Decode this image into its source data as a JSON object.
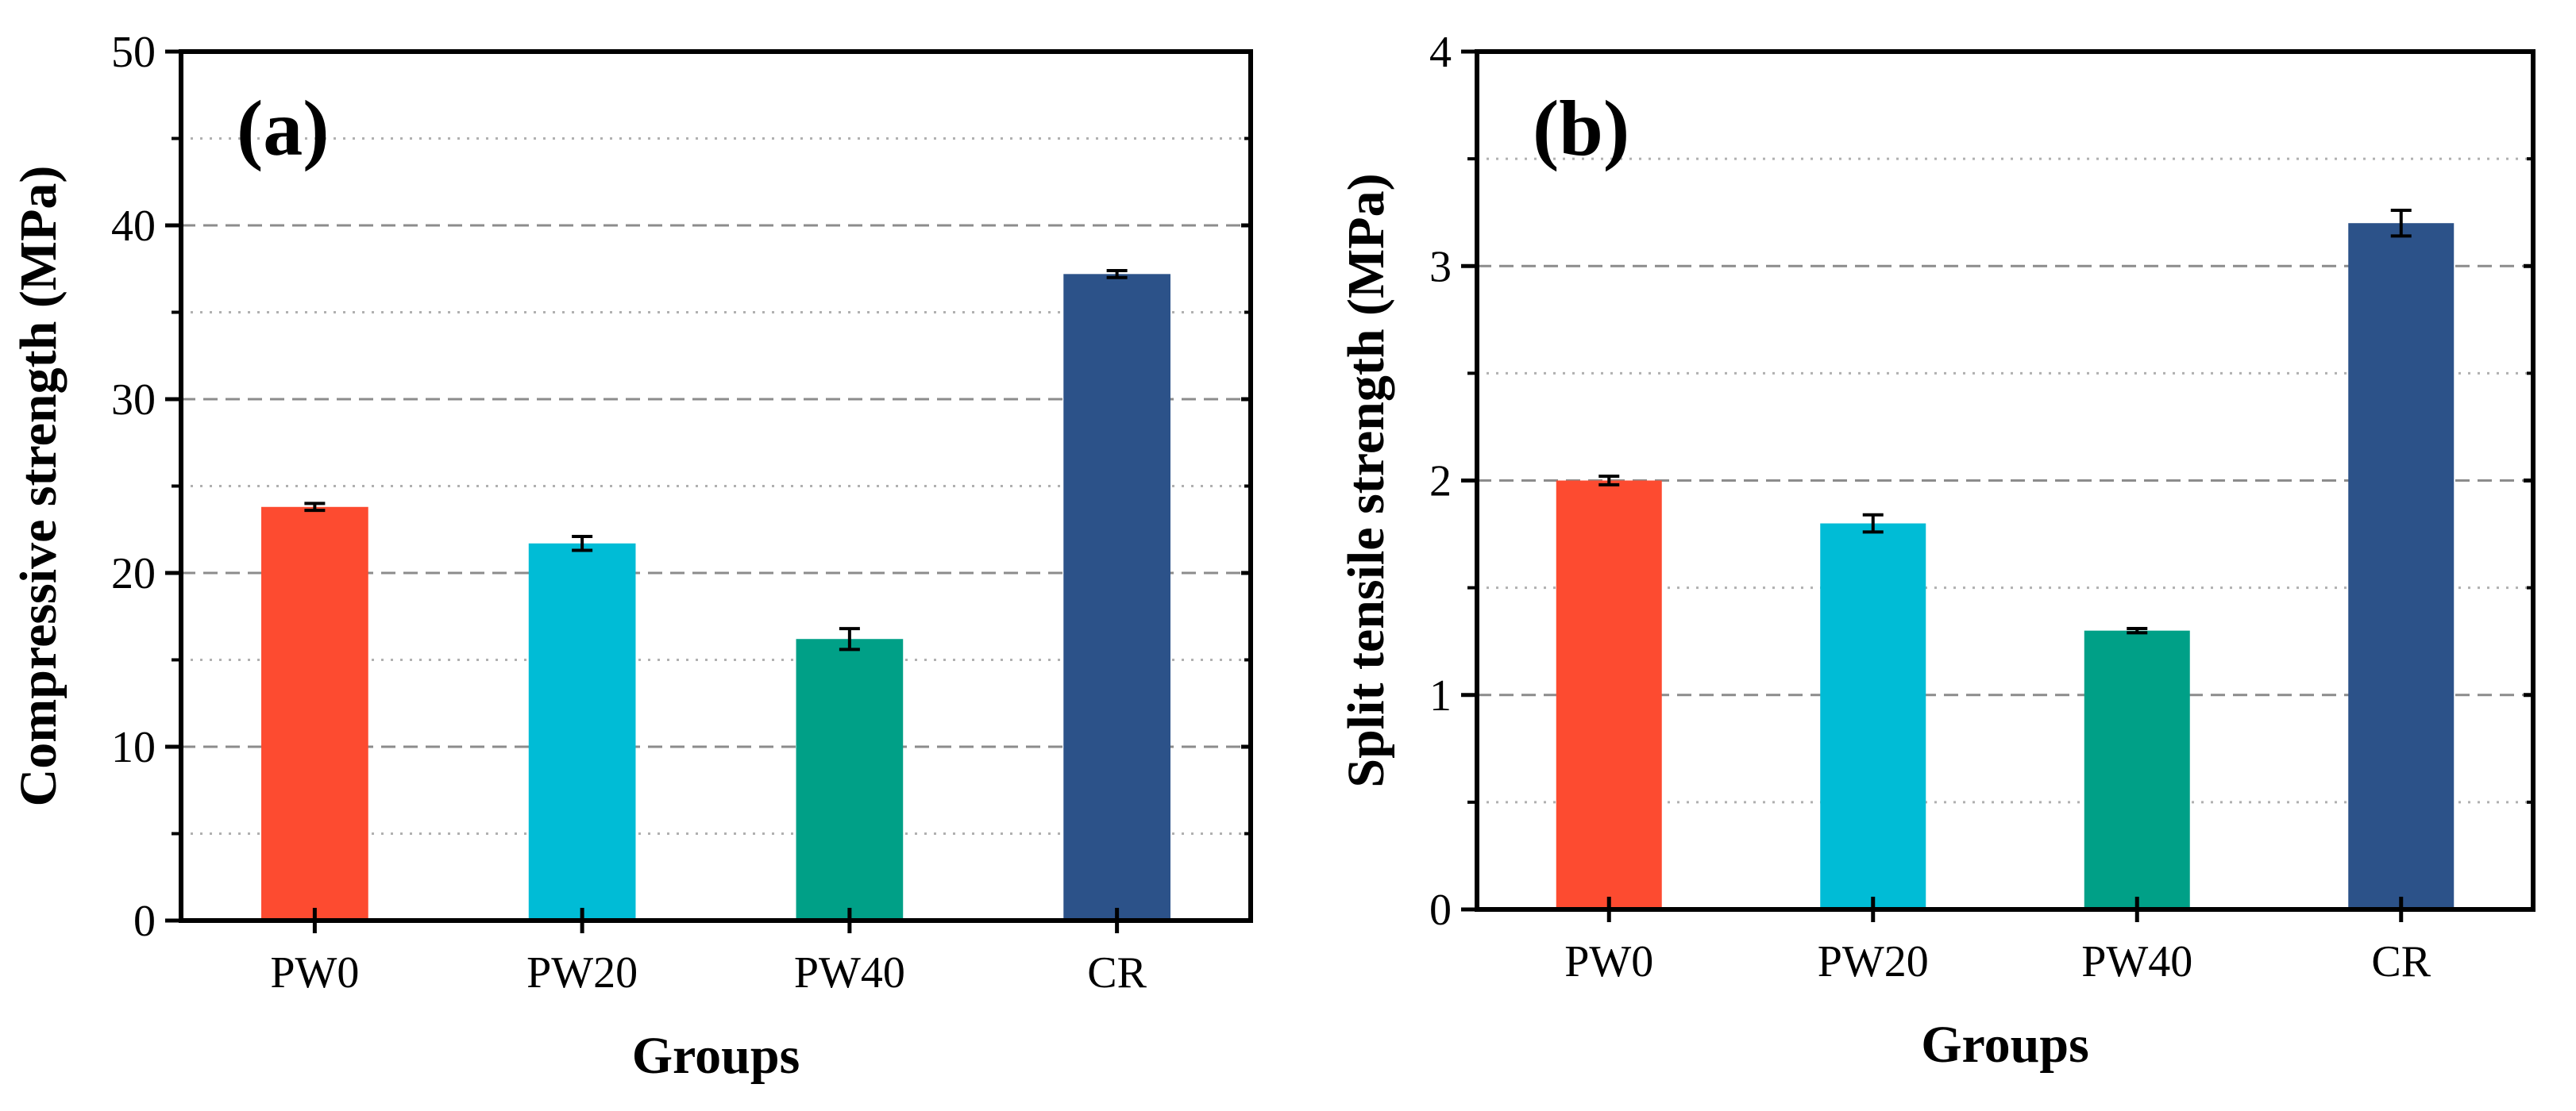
{
  "chart_data": [
    {
      "type": "bar",
      "panel_label": "(a)",
      "categories": [
        "PW0",
        "PW20",
        "PW40",
        "CR"
      ],
      "values": [
        23.8,
        21.7,
        16.2,
        37.2
      ],
      "errors": [
        0.2,
        0.4,
        0.6,
        0.2
      ],
      "colors": [
        "#fd4b30",
        "#00bcd6",
        "#00a087",
        "#2c5289"
      ],
      "xlabel": "Groups",
      "ylabel": "Compressive strength (MPa)",
      "ylim": [
        0,
        50
      ],
      "yticks": [
        0,
        10,
        20,
        30,
        40,
        50
      ],
      "grid_major": "dashed",
      "grid_minor": "dotted"
    },
    {
      "type": "bar",
      "panel_label": "(b)",
      "categories": [
        "PW0",
        "PW20",
        "PW40",
        "CR"
      ],
      "values": [
        2.0,
        1.8,
        1.3,
        3.2
      ],
      "errors": [
        0.02,
        0.04,
        0.01,
        0.06
      ],
      "colors": [
        "#fd4b30",
        "#00bcd6",
        "#00a087",
        "#2c5289"
      ],
      "xlabel": "Groups",
      "ylabel": "Split tensile strength (MPa)",
      "ylim": [
        0,
        4
      ],
      "yticks": [
        0,
        1,
        2,
        3,
        4
      ],
      "grid_major": "dashed",
      "grid_minor": "dotted"
    }
  ]
}
